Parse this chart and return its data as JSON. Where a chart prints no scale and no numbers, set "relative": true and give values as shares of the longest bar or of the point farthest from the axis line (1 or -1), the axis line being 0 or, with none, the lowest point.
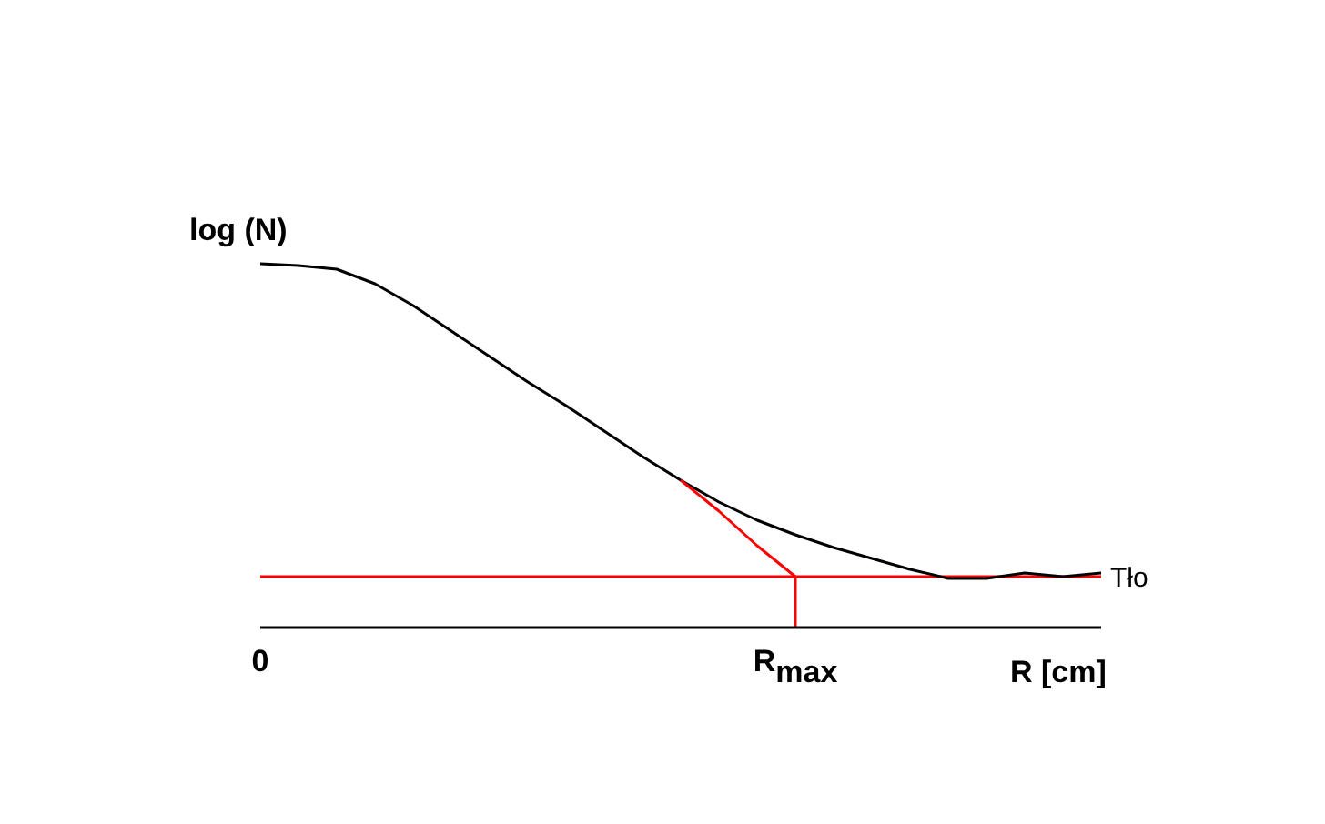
{
  "chart_data": {
    "type": "line",
    "relative": true,
    "xlabel": "R [cm]",
    "ylabel": "log (N)",
    "categories": [
      "0",
      null,
      null,
      null,
      null,
      null,
      null,
      null,
      null,
      null,
      null,
      null,
      null,
      null,
      "R$_{max}$",
      null,
      null,
      null,
      null,
      null,
      null,
      null,
      null
    ],
    "marker": "none",
    "legend": false,
    "grid": false,
    "series": [
      {
        "color": "#000000",
        "values": [
          1,
          0.995,
          0.985,
          0.945,
          0.885,
          0.815,
          0.745,
          0.675,
          0.61,
          0.54,
          0.47,
          0.405,
          0.345,
          0.295,
          0.255,
          0.22,
          0.19,
          0.16,
          0.135,
          0.135,
          0.15,
          0.14,
          0.15
        ]
      },
      {
        "color": "#ff0000",
        "values": [
          null,
          null,
          null,
          null,
          null,
          null,
          null,
          null,
          null,
          null,
          null,
          0.405,
          0.32,
          0.225,
          0.14,
          null,
          null,
          null,
          null,
          null,
          null,
          null,
          null
        ]
      }
    ],
    "ref_lines": [
      {
        "axis": "y",
        "value": 0.14,
        "label": "Tło",
        "color": "#ff0000"
      },
      {
        "axis": "x",
        "value": "R$_{max}$",
        "color": "#ff0000"
      }
    ]
  }
}
